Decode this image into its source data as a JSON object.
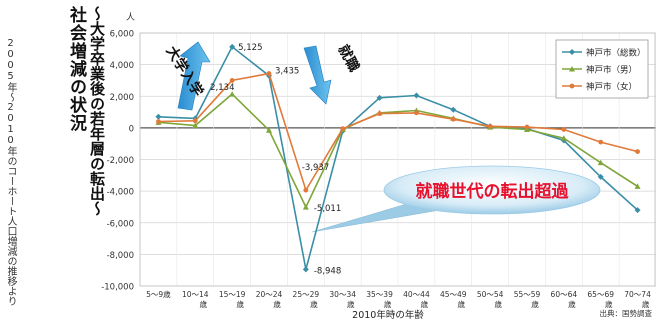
{
  "title": {
    "main": "社会増減の状況",
    "sub": "～大学卒業後の若年層の転出～",
    "note": "2005年～2010年のコーホート人口増減の推移より"
  },
  "chart_data": {
    "type": "line",
    "ylabel": "人",
    "xlabel": "2010年時の年齢",
    "source": "出典：国勢調査",
    "ylim": [
      -10000,
      6000
    ],
    "yticks": [
      6000,
      4000,
      2000,
      0,
      -2000,
      -4000,
      -6000,
      -8000,
      -10000
    ],
    "ytick_labels": [
      "6,000",
      "4,000",
      "2,000",
      "0",
      "-2,000",
      "-4,000",
      "-6,000",
      "-8,000",
      "-10,000"
    ],
    "grid": true,
    "legend_position": "top-right",
    "categories": [
      {
        "line1": "5～9歳",
        "line2": ""
      },
      {
        "line1": "10～14",
        "line2": "歳"
      },
      {
        "line1": "15～19",
        "line2": "歳"
      },
      {
        "line1": "20～24",
        "line2": "歳"
      },
      {
        "line1": "25～29",
        "line2": "歳"
      },
      {
        "line1": "30～34",
        "line2": "歳"
      },
      {
        "line1": "35～39",
        "line2": "歳"
      },
      {
        "line1": "40～44",
        "line2": "歳"
      },
      {
        "line1": "45～49",
        "line2": "歳"
      },
      {
        "line1": "50～54",
        "line2": "歳"
      },
      {
        "line1": "55～59",
        "line2": "歳"
      },
      {
        "line1": "60～64",
        "line2": "歳"
      },
      {
        "line1": "65～69",
        "line2": "歳"
      },
      {
        "line1": "70～74",
        "line2": "歳"
      }
    ],
    "series": [
      {
        "name": "神戸市（総数）",
        "color": "#3a8ea6",
        "values": [
          700,
          600,
          5125,
          3300,
          -8948,
          -200,
          1900,
          2050,
          1150,
          100,
          -50,
          -800,
          -3100,
          -5200
        ]
      },
      {
        "name": "神戸市（男）",
        "color": "#7fa63a",
        "values": [
          350,
          150,
          2134,
          -150,
          -5011,
          -100,
          950,
          1100,
          600,
          50,
          -100,
          -650,
          -2200,
          -3700
        ]
      },
      {
        "name": "神戸市（女）",
        "color": "#e07a3a",
        "values": [
          400,
          450,
          3000,
          3435,
          -3937,
          -50,
          900,
          950,
          550,
          100,
          50,
          -100,
          -900,
          -1500
        ]
      }
    ],
    "data_labels": [
      {
        "text": "5,125",
        "series": 0,
        "index": 2,
        "dx": 6,
        "dy": 3
      },
      {
        "text": "2,134",
        "series": 1,
        "index": 2,
        "dx": -22,
        "dy": -4
      },
      {
        "text": "3,435",
        "series": 2,
        "index": 3,
        "dx": 6,
        "dy": 0
      },
      {
        "text": "-3,937",
        "series": 2,
        "index": 4,
        "dx": -4,
        "dy": -20
      },
      {
        "text": "-5,011",
        "series": 1,
        "index": 4,
        "dx": 8,
        "dy": 4
      },
      {
        "text": "-8,948",
        "series": 0,
        "index": 4,
        "dx": 8,
        "dy": 4
      }
    ],
    "annotations": {
      "arrow_up_label": "大学入学",
      "arrow_down_label": "就職",
      "callout": "就職世代の転出超過",
      "arrow_color": "#3aa0d8",
      "callout_color": "#e8112d"
    }
  }
}
